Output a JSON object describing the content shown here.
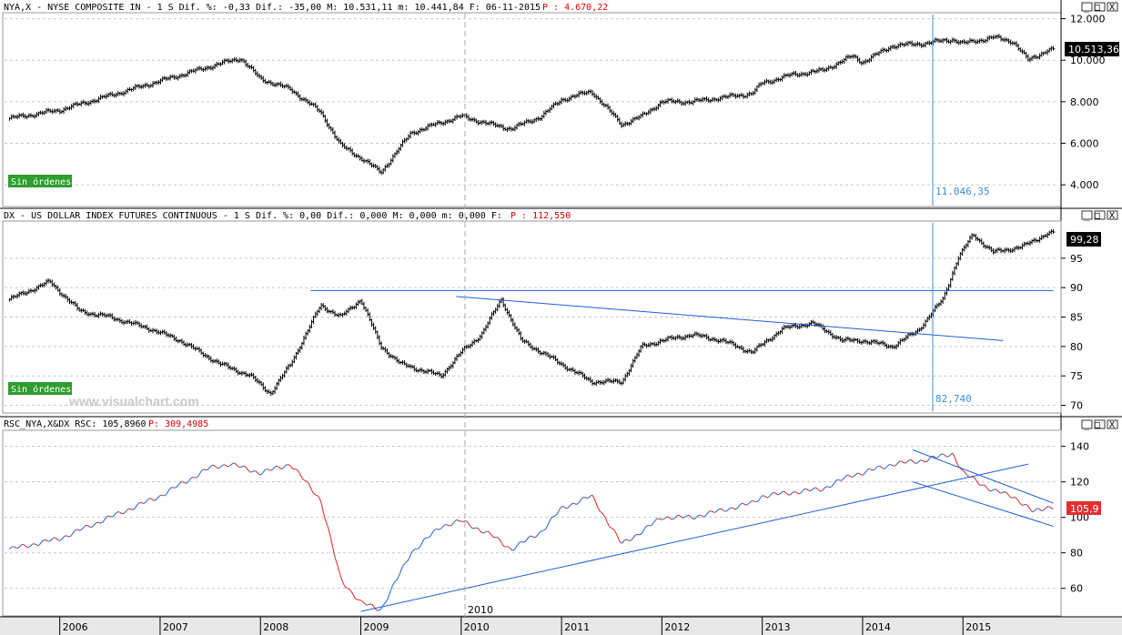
{
  "colors": {
    "background": "#ffffff",
    "price": "#000000",
    "rsc_up": "#1f5fd6",
    "rsc_down": "#e02020",
    "trendline": "#1f5fd6",
    "cursor": "#3a8fd8",
    "order_badge": "#2e9e2e",
    "last_badge": "#000000",
    "rsc_badge": "#e03030"
  },
  "window_buttons": [
    "_",
    "□",
    "X"
  ],
  "panels": [
    {
      "title_black": "NYA,X - NYSE COMPOSITE IN -  1 S Dif. %: -0,33 Dif.: -35,00 M: 10.531,11 m: 10.441,84 F: 06-11-2015",
      "title_red": "P : 4.670,22",
      "y_ticks": [
        "12.000",
        "10.000",
        "8.000",
        "6.000",
        "4.000"
      ],
      "last_value": "10.513,36",
      "cursor_value": "11.046,35",
      "badge": "Sin órdenes"
    },
    {
      "title_black": "DX - US DOLLAR INDEX FUTURES CONTINUOUS -  1 S Dif. %: 0,00 Dif.: 0,000 M: 0,000 m: 0,000 F:",
      "title_red": "P : 112,550",
      "y_ticks": [
        "95",
        "90",
        "85",
        "80",
        "75",
        "70"
      ],
      "last_value": "99,28",
      "cursor_value": "82,740",
      "badge": "Sin órdenes",
      "watermark": "www.visualchart.com"
    },
    {
      "title_black": "RSC_NYA,X&DX RSC: 105,8960",
      "title_red": "P: 309,4985",
      "y_ticks": [
        "140",
        "120",
        "100",
        "80",
        "60"
      ],
      "last_value": "105,9"
    }
  ],
  "x_axis": {
    "labels": [
      "2006",
      "2007",
      "2008",
      "2009",
      "2010",
      "2011",
      "2012",
      "2013",
      "2014",
      "2015"
    ],
    "cursor_label": "2010"
  },
  "chart_data": [
    {
      "type": "bar",
      "title": "NYA,X - NYSE COMPOSITE IN",
      "x": [
        2005.5,
        2006.0,
        2006.5,
        2007.0,
        2007.5,
        2007.8,
        2008.0,
        2008.3,
        2008.6,
        2008.8,
        2009.0,
        2009.2,
        2009.5,
        2009.8,
        2010.0,
        2010.3,
        2010.5,
        2010.8,
        2011.0,
        2011.3,
        2011.6,
        2011.8,
        2012.0,
        2012.3,
        2012.6,
        2012.9,
        2013.0,
        2013.3,
        2013.6,
        2013.9,
        2014.0,
        2014.3,
        2014.6,
        2014.9,
        2015.0,
        2015.3,
        2015.5,
        2015.65,
        2015.85
      ],
      "y": [
        7200,
        7600,
        8300,
        9000,
        9700,
        10100,
        9100,
        8600,
        7500,
        5900,
        5300,
        4600,
        6500,
        7000,
        7300,
        6900,
        6700,
        7300,
        8100,
        8500,
        6900,
        7300,
        8000,
        8000,
        8200,
        8400,
        8900,
        9300,
        9500,
        10200,
        9900,
        10700,
        10800,
        11000,
        10800,
        11100,
        10900,
        10000,
        10500
      ],
      "ylim": [
        3000,
        12200
      ],
      "y_ticks": [
        12000,
        10000,
        8000,
        6000,
        4000
      ],
      "xlim": [
        2005.45,
        2015.95
      ]
    },
    {
      "type": "bar",
      "title": "DX - US DOLLAR INDEX FUTURES CONTINUOUS",
      "x": [
        2005.5,
        2005.9,
        2006.2,
        2006.5,
        2006.9,
        2007.2,
        2007.6,
        2007.9,
        2008.1,
        2008.3,
        2008.6,
        2008.8,
        2009.0,
        2009.2,
        2009.4,
        2009.8,
        2010.0,
        2010.2,
        2010.4,
        2010.6,
        2010.8,
        2011.0,
        2011.3,
        2011.6,
        2011.8,
        2012.0,
        2012.3,
        2012.6,
        2012.9,
        2013.2,
        2013.5,
        2013.8,
        2014.0,
        2014.3,
        2014.55,
        2014.8,
        2014.95,
        2015.1,
        2015.3,
        2015.6,
        2015.85
      ],
      "y": [
        88,
        91,
        86,
        85,
        83,
        81,
        77,
        75,
        72,
        77,
        87,
        85,
        88,
        80,
        77,
        75,
        79,
        82,
        88,
        81,
        79,
        77,
        74,
        74,
        80,
        81,
        82,
        81,
        79,
        83,
        84,
        81,
        81,
        80,
        82.7,
        88,
        95,
        99,
        96,
        97,
        99.28
      ],
      "ylim": [
        69,
        101
      ],
      "y_ticks": [
        95,
        90,
        85,
        80,
        75,
        70
      ],
      "xlim": [
        2005.45,
        2015.95
      ],
      "lines": [
        {
          "x1": 2008.5,
          "y1": 89.5,
          "x2": 2015.9,
          "y2": 89.5
        },
        {
          "x1": 2009.95,
          "y1": 88.5,
          "x2": 2015.4,
          "y2": 81.0
        }
      ]
    },
    {
      "type": "line",
      "title": "RSC_NYA,X&DX",
      "x": [
        2005.5,
        2006.0,
        2006.5,
        2007.0,
        2007.5,
        2007.7,
        2008.0,
        2008.3,
        2008.6,
        2008.8,
        2009.0,
        2009.2,
        2009.5,
        2009.8,
        2010.0,
        2010.3,
        2010.5,
        2010.8,
        2011.0,
        2011.3,
        2011.6,
        2011.8,
        2012.0,
        2012.3,
        2012.6,
        2012.9,
        2013.0,
        2013.3,
        2013.6,
        2013.9,
        2014.0,
        2014.3,
        2014.6,
        2014.9,
        2015.0,
        2015.3,
        2015.5,
        2015.7,
        2015.85
      ],
      "y": [
        82,
        88,
        100,
        112,
        128,
        130,
        125,
        130,
        110,
        65,
        52,
        48,
        80,
        95,
        98,
        90,
        82,
        92,
        105,
        112,
        85,
        92,
        100,
        100,
        104,
        108,
        112,
        114,
        116,
        124,
        125,
        130,
        132,
        136,
        125,
        115,
        112,
        103,
        106
      ],
      "ylim": [
        45,
        148
      ],
      "y_ticks": [
        140,
        120,
        100,
        80,
        60
      ],
      "xlim": [
        2005.45,
        2015.95
      ],
      "lines": [
        {
          "x1": 2009.0,
          "y1": 47,
          "x2": 2015.65,
          "y2": 130
        },
        {
          "x1": 2014.5,
          "y1": 138,
          "x2": 2015.9,
          "y2": 108
        },
        {
          "x1": 2014.5,
          "y1": 120,
          "x2": 2015.9,
          "y2": 95
        }
      ]
    }
  ]
}
